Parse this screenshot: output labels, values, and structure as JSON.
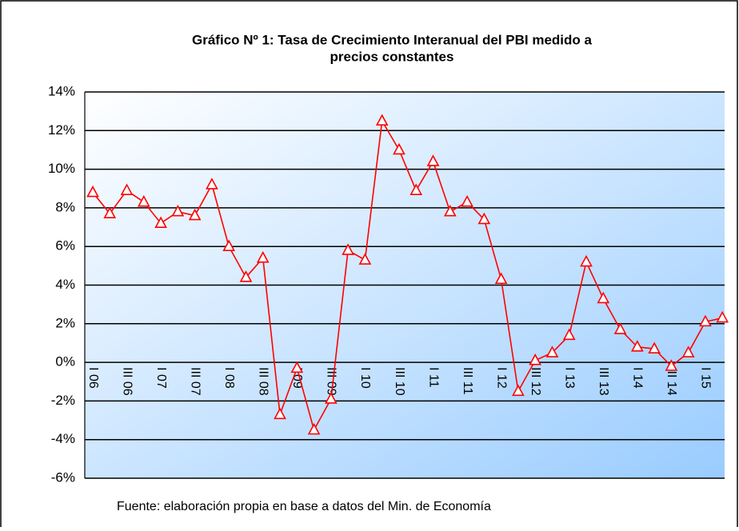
{
  "chart_data": {
    "type": "line",
    "title": [
      "Gráfico Nº 1: Tasa de Crecimiento Interanual del PBI medido a",
      "precios constantes"
    ],
    "source": "Fuente: elaboración propia en base a datos del Min. de Economía",
    "categories": [
      "I 06",
      null,
      "III 06",
      null,
      "I 07",
      null,
      "III 07",
      null,
      "I 08",
      null,
      "III 08",
      null,
      "I 09",
      null,
      "III 09",
      null,
      "I 10",
      null,
      "III 10",
      null,
      "I 11",
      null,
      "III 11",
      null,
      "I 12",
      null,
      "III 12",
      null,
      "I 13",
      null,
      "III 13",
      null,
      "I 14",
      null,
      "III 14",
      null,
      "I 15",
      null
    ],
    "values": [
      8.8,
      7.7,
      8.9,
      8.3,
      7.2,
      7.8,
      7.6,
      9.2,
      6.0,
      4.4,
      5.4,
      -2.7,
      -0.3,
      -3.5,
      -1.9,
      5.8,
      5.3,
      12.5,
      11.0,
      8.9,
      10.4,
      7.8,
      8.3,
      7.4,
      4.3,
      -1.5,
      0.1,
      0.5,
      1.4,
      5.2,
      3.3,
      1.7,
      0.8,
      0.7,
      -0.2,
      0.5,
      2.1,
      2.3
    ],
    "color": "#ff0000",
    "ylim": [
      -6,
      14
    ],
    "yticks": [
      {
        "value": -6,
        "label": "-6%"
      },
      {
        "value": -4,
        "label": "-4%"
      },
      {
        "value": -2,
        "label": "-2%"
      },
      {
        "value": 0,
        "label": "0%"
      },
      {
        "value": 2,
        "label": "2%"
      },
      {
        "value": 4,
        "label": "4%"
      },
      {
        "value": 6,
        "label": "6%"
      },
      {
        "value": 8,
        "label": "8%"
      },
      {
        "value": 10,
        "label": "10%"
      },
      {
        "value": 12,
        "label": "12%"
      },
      {
        "value": 14,
        "label": "14%"
      }
    ],
    "grid": true
  }
}
